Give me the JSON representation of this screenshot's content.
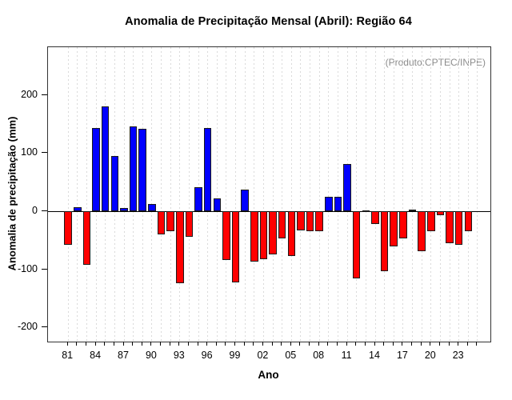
{
  "chart_data": {
    "type": "bar",
    "title": "Anomalia de Precipitação Mensal (Abril): Região 64",
    "xlabel": "Ano",
    "ylabel": "Anomalia de precipitação (mm)",
    "annotation": "(Produto:CPTEC/INPE)",
    "years": [
      1981,
      1982,
      1983,
      1984,
      1985,
      1986,
      1987,
      1988,
      1989,
      1990,
      1991,
      1992,
      1993,
      1994,
      1995,
      1996,
      1997,
      1998,
      1999,
      2000,
      2001,
      2002,
      2003,
      2004,
      2005,
      2006,
      2007,
      2008,
      2009,
      2010,
      2011,
      2012,
      2013,
      2014,
      2015,
      2016,
      2017,
      2018,
      2019,
      2020,
      2021,
      2022,
      2023,
      2024
    ],
    "values": [
      -58,
      7,
      -92,
      144,
      181,
      96,
      6,
      146,
      142,
      13,
      -40,
      -34,
      -123,
      -43,
      42,
      144,
      23,
      -84,
      -122,
      38,
      -86,
      -82,
      -74,
      -46,
      -77,
      -32,
      -34,
      -34,
      26,
      26,
      82,
      -115,
      2,
      -22,
      -103,
      -60,
      -46,
      3,
      -68,
      -34,
      -7,
      -55,
      -57,
      -34
    ],
    "x_labeled_years": [
      1981,
      1984,
      1987,
      1990,
      1993,
      1996,
      1999,
      2002,
      2005,
      2008,
      2011,
      2014,
      2017,
      2020,
      2023
    ],
    "x_tick_labels": [
      "81",
      "84",
      "87",
      "90",
      "93",
      "96",
      "99",
      "02",
      "05",
      "08",
      "11",
      "14",
      "17",
      "20",
      "23"
    ],
    "y_ticks": [
      -200,
      -100,
      0,
      100,
      200
    ],
    "ylim": [
      -224,
      283
    ],
    "grid": "vertical-dotted-per-year",
    "grid_last_year": 2025,
    "positive_color": "#0000ff",
    "negative_color": "#ff0000",
    "bar_border_color": "#1a1a1a",
    "grid_color": "#d9d9d9",
    "annotation_color": "#8c8c8c",
    "axis_color": "#000000",
    "legend": "none"
  }
}
